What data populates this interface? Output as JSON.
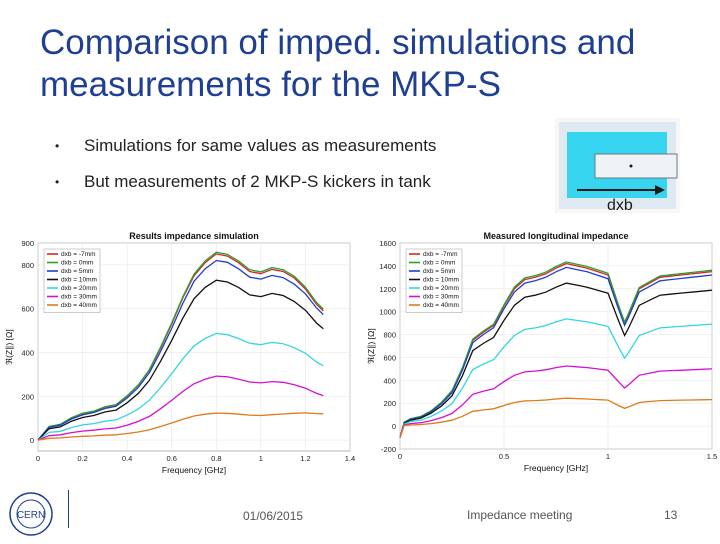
{
  "slide": {
    "title": "Comparison of imped. simulations and measurements for the MKP-S",
    "bullets": [
      "Simulations for same values as measurements",
      "But measurements of 2 MKP-S kickers in tank"
    ],
    "inset_label": "dxb",
    "footer": {
      "date": "01/06/2015",
      "event": "Impedance meeting",
      "page": "13"
    },
    "logo_text": "CERN"
  },
  "chart_data": [
    {
      "type": "line",
      "title": "Results impedance simulation",
      "xlabel": "Frequency [GHz]",
      "ylabel": "ℜ(Z∥) [Ω]",
      "xlim": [
        0,
        1.4
      ],
      "ylim": [
        -50,
        900
      ],
      "xticks": [
        "0",
        "0.2",
        "0.4",
        "0.6",
        "0.8",
        "1",
        "1.2",
        "1.4"
      ],
      "yticks": [
        "0",
        "200",
        "400",
        "600",
        "800",
        "900"
      ],
      "legend_position": "top-left",
      "x": [
        0,
        0.05,
        0.1,
        0.15,
        0.2,
        0.25,
        0.3,
        0.35,
        0.4,
        0.45,
        0.5,
        0.55,
        0.6,
        0.65,
        0.7,
        0.75,
        0.8,
        0.85,
        0.9,
        0.95,
        1.0,
        1.05,
        1.1,
        1.15,
        1.2,
        1.25,
        1.28
      ],
      "series": [
        {
          "name": "dxb = -7mm",
          "color": "#d62728",
          "values": [
            0,
            60,
            70,
            100,
            120,
            130,
            150,
            160,
            200,
            250,
            320,
            420,
            530,
            650,
            750,
            810,
            850,
            840,
            810,
            770,
            760,
            780,
            770,
            740,
            690,
            620,
            590
          ]
        },
        {
          "name": "dxb = 0mm",
          "color": "#2ca02c",
          "values": [
            0,
            62,
            72,
            102,
            122,
            132,
            152,
            162,
            202,
            252,
            322,
            425,
            535,
            655,
            758,
            818,
            858,
            848,
            818,
            778,
            768,
            788,
            778,
            748,
            698,
            628,
            598
          ]
        },
        {
          "name": "dxb = 5mm",
          "color": "#1f3fd0",
          "values": [
            0,
            58,
            68,
            96,
            115,
            126,
            144,
            154,
            192,
            240,
            308,
            405,
            510,
            625,
            725,
            782,
            820,
            812,
            782,
            744,
            735,
            752,
            742,
            712,
            668,
            603,
            573
          ]
        },
        {
          "name": "dxb = 10mm",
          "color": "#111111",
          "values": [
            0,
            52,
            60,
            86,
            103,
            112,
            128,
            137,
            170,
            213,
            273,
            360,
            455,
            557,
            645,
            697,
            730,
            722,
            697,
            663,
            655,
            670,
            660,
            633,
            593,
            534,
            508
          ]
        },
        {
          "name": "dxb = 20mm",
          "color": "#33d6e0",
          "values": [
            0,
            35,
            40,
            57,
            69,
            75,
            86,
            92,
            114,
            142,
            182,
            240,
            303,
            371,
            430,
            464,
            487,
            481,
            464,
            442,
            436,
            446,
            440,
            422,
            396,
            356,
            339
          ]
        },
        {
          "name": "dxb = 30mm",
          "color": "#d60fd6",
          "values": [
            0,
            20,
            24,
            34,
            41,
            45,
            51,
            55,
            68,
            85,
            108,
            143,
            181,
            222,
            257,
            278,
            292,
            289,
            278,
            265,
            261,
            267,
            264,
            253,
            237,
            213,
            203
          ]
        },
        {
          "name": "dxb = 40mm",
          "color": "#e07a1a",
          "values": [
            0,
            8,
            10,
            14,
            17,
            19,
            22,
            24,
            30,
            37,
            47,
            62,
            78,
            95,
            110,
            118,
            123,
            122,
            118,
            114,
            112,
            116,
            119,
            122,
            124,
            121,
            120
          ]
        }
      ]
    },
    {
      "type": "line",
      "title": "Measured longitudinal impedance",
      "xlabel": "Frequency [GHz]",
      "ylabel": "ℜ(Z∥) [Ω]",
      "xlim": [
        0,
        1.5
      ],
      "ylim": [
        -200,
        1600
      ],
      "xticks": [
        "0",
        "0.5",
        "1",
        "1.5"
      ],
      "yticks": [
        "-200",
        "0",
        "200",
        "400",
        "600",
        "800",
        "1000",
        "1200",
        "1400",
        "1600"
      ],
      "legend_position": "top-left",
      "x": [
        0,
        0.02,
        0.05,
        0.1,
        0.15,
        0.2,
        0.25,
        0.3,
        0.35,
        0.4,
        0.45,
        0.5,
        0.55,
        0.6,
        0.65,
        0.7,
        0.75,
        0.8,
        0.85,
        0.9,
        0.95,
        1.0,
        1.05,
        1.08,
        1.1,
        1.15,
        1.2,
        1.25,
        1.3,
        1.35,
        1.4,
        1.45,
        1.5
      ],
      "series": [
        {
          "name": "dxb = -7mm",
          "color": "#d62728",
          "values": [
            -100,
            30,
            60,
            80,
            130,
            200,
            300,
            500,
            750,
            820,
            880,
            1050,
            1200,
            1280,
            1300,
            1330,
            1380,
            1420,
            1400,
            1380,
            1350,
            1320,
            1050,
            900,
            980,
            1200,
            1250,
            1300,
            1310,
            1320,
            1330,
            1340,
            1350
          ]
        },
        {
          "name": "dxb = 0mm",
          "color": "#2ca02c",
          "values": [
            -100,
            35,
            65,
            85,
            135,
            210,
            310,
            510,
            760,
            830,
            890,
            1060,
            1215,
            1295,
            1315,
            1345,
            1395,
            1435,
            1415,
            1395,
            1365,
            1335,
            1060,
            910,
            990,
            1210,
            1262,
            1312,
            1322,
            1332,
            1342,
            1352,
            1362
          ]
        },
        {
          "name": "dxb = 5mm",
          "color": "#1f3fd0",
          "values": [
            -100,
            28,
            58,
            78,
            125,
            195,
            292,
            488,
            730,
            800,
            860,
            1025,
            1172,
            1250,
            1270,
            1300,
            1348,
            1387,
            1368,
            1348,
            1318,
            1288,
            1025,
            880,
            957,
            1172,
            1221,
            1270,
            1280,
            1290,
            1300,
            1310,
            1320
          ]
        },
        {
          "name": "dxb = 10mm",
          "color": "#111111",
          "values": [
            -100,
            25,
            52,
            70,
            114,
            176,
            264,
            440,
            660,
            722,
            775,
            924,
            1056,
            1126,
            1144,
            1170,
            1214,
            1250,
            1232,
            1214,
            1188,
            1161,
            924,
            792,
            862,
            1056,
            1100,
            1144,
            1153,
            1162,
            1170,
            1179,
            1188
          ]
        },
        {
          "name": "dxb = 20mm",
          "color": "#33d6e0",
          "values": [
            -100,
            18,
            40,
            52,
            86,
            132,
            198,
            330,
            495,
            541,
            581,
            693,
            792,
            845,
            858,
            878,
            911,
            937,
            924,
            911,
            891,
            871,
            693,
            594,
            647,
            792,
            825,
            858,
            865,
            871,
            878,
            884,
            891
          ]
        },
        {
          "name": "dxb = 30mm",
          "color": "#d60fd6",
          "values": [
            -100,
            10,
            22,
            30,
            48,
            74,
            111,
            185,
            278,
            304,
            326,
            389,
            444,
            474,
            481,
            492,
            511,
            525,
            518,
            511,
            500,
            488,
            389,
            333,
            363,
            444,
            463,
            481,
            485,
            488,
            492,
            496,
            500
          ]
        },
        {
          "name": "dxb = 40mm",
          "color": "#e07a1a",
          "values": [
            -100,
            5,
            10,
            14,
            22,
            34,
            52,
            86,
            129,
            141,
            151,
            180,
            206,
            220,
            223,
            228,
            237,
            244,
            240,
            237,
            232,
            227,
            180,
            155,
            169,
            206,
            215,
            223,
            225,
            227,
            228,
            230,
            232
          ]
        }
      ]
    }
  ]
}
